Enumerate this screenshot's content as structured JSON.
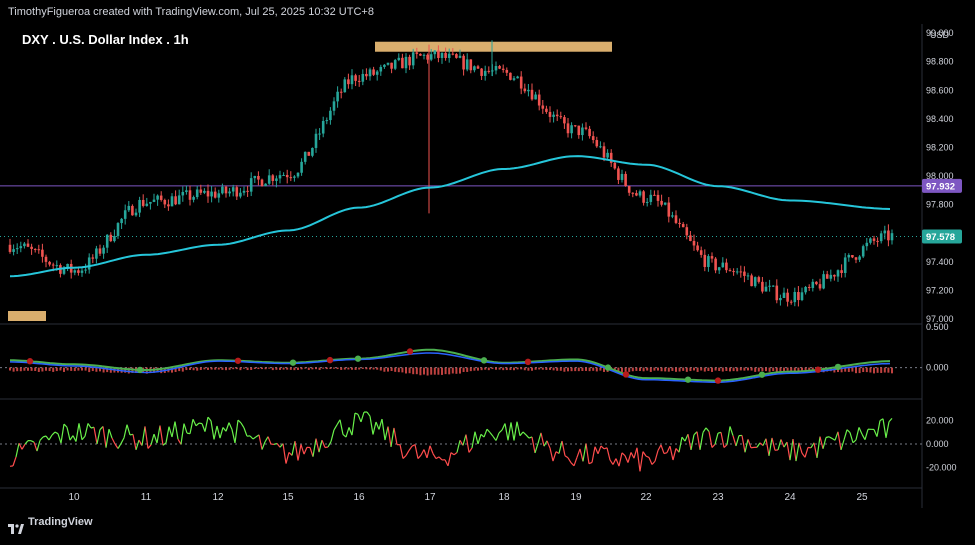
{
  "header": {
    "attribution": "TimothyFigueroa created with TradingView.com, Jul 25, 2025 10:32 UTC+8"
  },
  "footer": {
    "brand": "TradingView"
  },
  "colors": {
    "background": "#000000",
    "up": "#26a69a",
    "down": "#ef5350",
    "ma": "#26c6da",
    "level_line": "#7e57c2",
    "zone": "#ffcc80",
    "macd_fast": "#2962ff",
    "macd_signal": "#4caf50",
    "macd_signal_down": "#b71c1c",
    "osc_up": "#69f04a",
    "osc_down": "#ff4d4d"
  },
  "chart_data": {
    "type": "candlestick",
    "title": "DXY . U.S. Dollar Index . 1h",
    "currency": "USD",
    "x_ticks": [
      "10",
      "11",
      "12",
      "15",
      "16",
      "17",
      "18",
      "19",
      "22",
      "23",
      "24",
      "25"
    ],
    "price_panel": {
      "y_ticks": [
        "99.000",
        "98.800",
        "98.600",
        "98.400",
        "98.200",
        "98.000",
        "97.800",
        "97.600",
        "97.400",
        "97.200",
        "97.000"
      ],
      "ylim": [
        96.98,
        99.05
      ],
      "level_line": {
        "value": 97.932,
        "label": "97.932"
      },
      "last_price": {
        "value": 97.578,
        "label": "97.578"
      },
      "resistance_zone": {
        "from_day": "16",
        "to_day": "19",
        "low": 98.87,
        "high": 98.94
      },
      "path_days": [
        "9",
        "10",
        "11",
        "12",
        "15",
        "16",
        "17",
        "18",
        "19",
        "22",
        "23",
        "24",
        "25"
      ],
      "path_prices": [
        97.52,
        97.34,
        97.82,
        97.88,
        98.02,
        98.7,
        98.84,
        98.72,
        98.32,
        97.85,
        97.37,
        97.16,
        97.58
      ],
      "ma_prices": [
        97.3,
        97.36,
        97.45,
        97.52,
        97.62,
        97.78,
        97.92,
        98.05,
        98.14,
        98.08,
        97.93,
        97.83,
        97.77
      ]
    },
    "macd_panel": {
      "y_ticks": [
        "0.500",
        "0.000"
      ],
      "ylim": [
        -0.35,
        0.5
      ],
      "days": [
        "9",
        "10",
        "11",
        "12",
        "15",
        "16",
        "17",
        "18",
        "19",
        "22",
        "23",
        "24",
        "25"
      ],
      "fast": [
        0.07,
        0.02,
        -0.06,
        0.08,
        0.05,
        0.1,
        0.18,
        0.05,
        0.08,
        -0.15,
        -0.18,
        -0.07,
        0.05
      ],
      "signal": [
        0.09,
        0.04,
        -0.03,
        0.09,
        0.06,
        0.11,
        0.22,
        0.06,
        0.1,
        -0.13,
        -0.16,
        -0.05,
        0.08
      ]
    },
    "oscillator_panel": {
      "y_ticks": [
        "20.000",
        "0.000",
        "-20.000"
      ],
      "ylim": [
        -36,
        36
      ],
      "days": [
        "9",
        "10",
        "11",
        "12",
        "15",
        "16",
        "17",
        "18",
        "19",
        "22",
        "23",
        "24",
        "25"
      ],
      "values": [
        -10,
        10,
        5,
        15,
        -8,
        18,
        -12,
        12,
        -10,
        -14,
        8,
        -6,
        12
      ]
    }
  }
}
